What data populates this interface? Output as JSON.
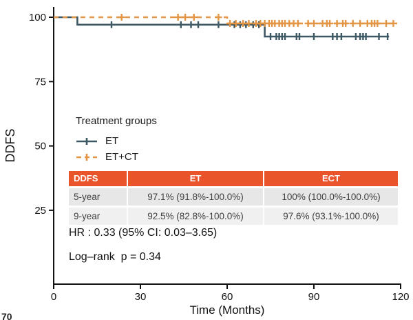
{
  "figure": {
    "y_axis_label": "DDFS",
    "x_axis_label": "Time (Months)"
  },
  "legend": {
    "title": "Treatment groups",
    "items": [
      {
        "label": "ET"
      },
      {
        "label": "ET+CT"
      }
    ]
  },
  "table": {
    "headers": [
      "DDFS",
      "ET",
      "ECT"
    ],
    "rows": [
      {
        "label": "5-year",
        "et": "97.1% (91.8%-100.0%)",
        "ect": "100% (100.0%-100.0%)"
      },
      {
        "label": "9-year",
        "et": "92.5% (82.8%-100.0%)",
        "ect": "97.6% (93.1%-100.0%)"
      }
    ]
  },
  "stats": {
    "hazard_ratio": "HR : 0.33 (95% CI: 0.03–3.65)",
    "log_rank": "Log–rank  p = 0.34"
  },
  "fragment": "70",
  "colors": {
    "et": "#3d5863",
    "etct": "#e39544",
    "table_header": "#e9542b",
    "axis": "#111111"
  },
  "chart_data": {
    "type": "line",
    "subtype": "kaplan-meier-step",
    "title": "",
    "xlabel": "Time (Months)",
    "ylabel": "DDFS",
    "xlim": [
      0,
      120
    ],
    "ylim": [
      0,
      100
    ],
    "x_ticks": [
      0,
      30,
      60,
      90,
      120
    ],
    "y_ticks": [
      100,
      75,
      50,
      25
    ],
    "grid": false,
    "legend_position": "inside-left",
    "series": [
      {
        "name": "ET",
        "color": "#3d5863",
        "dash": "solid",
        "steps": [
          [
            0,
            100
          ],
          [
            8.2,
            100
          ],
          [
            8.2,
            97.1
          ],
          [
            73,
            97.1
          ],
          [
            73,
            92.5
          ],
          [
            116,
            92.5
          ]
        ],
        "censors": [
          [
            20,
            97.1
          ],
          [
            44,
            97.1
          ],
          [
            47.5,
            97.1
          ],
          [
            50,
            97.1
          ],
          [
            57,
            97.1
          ],
          [
            62.5,
            97.1
          ],
          [
            64.5,
            97.1
          ],
          [
            66.5,
            97.1
          ],
          [
            69,
            97.1
          ],
          [
            71,
            97.1
          ],
          [
            75,
            92.5
          ],
          [
            77,
            92.5
          ],
          [
            78,
            92.5
          ],
          [
            79,
            92.5
          ],
          [
            80,
            92.5
          ],
          [
            84,
            92.5
          ],
          [
            85,
            92.5
          ],
          [
            90,
            92.5
          ],
          [
            96.5,
            92.5
          ],
          [
            98,
            92.5
          ],
          [
            99.5,
            92.5
          ],
          [
            104.5,
            92.5
          ],
          [
            106,
            92.5
          ],
          [
            107,
            92.5
          ],
          [
            108,
            92.5
          ],
          [
            112.5,
            92.5
          ],
          [
            115.5,
            92.5
          ]
        ]
      },
      {
        "name": "ET+CT",
        "color": "#e39544",
        "dash": "dashed",
        "steps": [
          [
            0,
            100
          ],
          [
            60,
            100
          ],
          [
            60,
            97.6
          ],
          [
            118.8,
            97.6
          ]
        ],
        "censors": [
          [
            23.5,
            100
          ],
          [
            43,
            100
          ],
          [
            45.5,
            100
          ],
          [
            48.5,
            100
          ],
          [
            57,
            100
          ],
          [
            61,
            97.6
          ],
          [
            63,
            97.6
          ],
          [
            65.5,
            97.6
          ],
          [
            67.5,
            97.6
          ],
          [
            70,
            97.6
          ],
          [
            71.5,
            97.6
          ],
          [
            73,
            97.6
          ],
          [
            74.5,
            97.6
          ],
          [
            75.5,
            97.6
          ],
          [
            76.5,
            97.6
          ],
          [
            78,
            97.6
          ],
          [
            79,
            97.6
          ],
          [
            80,
            97.6
          ],
          [
            81.5,
            97.6
          ],
          [
            83,
            97.6
          ],
          [
            84.5,
            97.6
          ],
          [
            88,
            97.6
          ],
          [
            90,
            97.6
          ],
          [
            93,
            97.6
          ],
          [
            94.5,
            97.6
          ],
          [
            95.5,
            97.6
          ],
          [
            98,
            97.6
          ],
          [
            100,
            97.6
          ],
          [
            101,
            97.6
          ],
          [
            103.5,
            97.6
          ],
          [
            106,
            97.6
          ],
          [
            108.5,
            97.6
          ],
          [
            110,
            97.6
          ],
          [
            111,
            97.6
          ],
          [
            112,
            97.6
          ],
          [
            115,
            97.6
          ],
          [
            117.5,
            97.6
          ]
        ]
      }
    ],
    "annotations": [
      "HR : 0.33 (95% CI: 0.03–3.65)",
      "Log–rank  p = 0.34"
    ]
  }
}
